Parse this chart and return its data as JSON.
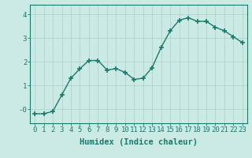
{
  "x": [
    0,
    1,
    2,
    3,
    4,
    5,
    6,
    7,
    8,
    9,
    10,
    11,
    12,
    13,
    14,
    15,
    16,
    17,
    18,
    19,
    20,
    21,
    22,
    23
  ],
  "y": [
    -0.2,
    -0.2,
    -0.1,
    0.6,
    1.3,
    1.7,
    2.05,
    2.05,
    1.65,
    1.7,
    1.55,
    1.25,
    1.3,
    1.75,
    2.6,
    3.3,
    3.75,
    3.85,
    3.7,
    3.7,
    3.45,
    3.3,
    3.05,
    2.8
  ],
  "line_color": "#1a7a6e",
  "marker": "+",
  "marker_size": 4,
  "bg_color": "#cceae4",
  "grid_color": "#b0d4cd",
  "axis_color": "#1a7a6e",
  "tick_color": "#1a7a6e",
  "xlabel": "Humidex (Indice chaleur)",
  "xlim": [
    -0.5,
    23.5
  ],
  "ylim": [
    -0.6,
    4.4
  ],
  "xticks": [
    0,
    1,
    2,
    3,
    4,
    5,
    6,
    7,
    8,
    9,
    10,
    11,
    12,
    13,
    14,
    15,
    16,
    17,
    18,
    19,
    20,
    21,
    22,
    23
  ],
  "yticks": [
    0,
    1,
    2,
    3,
    4
  ],
  "ytick_labels": [
    "-0",
    "1",
    "2",
    "3",
    "4"
  ],
  "tick_fontsize": 6.5,
  "label_fontsize": 7.5
}
